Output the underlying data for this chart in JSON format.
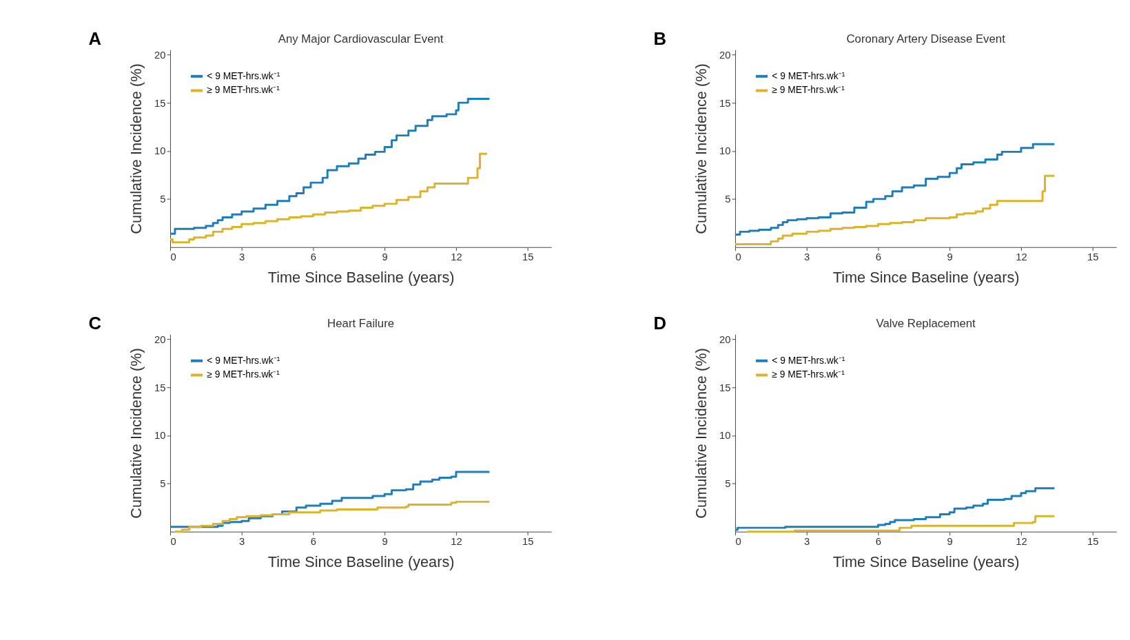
{
  "chart_data": [
    {
      "type": "step",
      "title": "Any Major Cardiovascular Event",
      "annotations": [
        "A"
      ],
      "xlabel": "Time Since Baseline (years)",
      "ylabel": "Cumulative Incidence (%)",
      "xlim": [
        0,
        16
      ],
      "ylim": [
        0,
        20.5
      ],
      "xticks": [
        0,
        3,
        6,
        9,
        12,
        15
      ],
      "yticks": [
        5,
        10,
        15,
        20
      ],
      "grid": false,
      "legend": "top left",
      "line_style": "solid",
      "series": [
        {
          "name": "< 9 MET-hrs.wk⁻¹",
          "color": "#1f7db8",
          "x": [
            0,
            0.2,
            0.8,
            1.0,
            1.5,
            1.8,
            2.0,
            2.2,
            2.6,
            3.0,
            3.5,
            4.0,
            4.5,
            5.0,
            5.3,
            5.6,
            5.9,
            6.4,
            6.6,
            7.0,
            7.5,
            7.9,
            8.2,
            8.6,
            9.0,
            9.3,
            9.5,
            10.0,
            10.3,
            10.8,
            11.0,
            11.6,
            12.0,
            12.1,
            12.5,
            13.4
          ],
          "values": [
            1.4,
            1.9,
            1.9,
            2.0,
            2.2,
            2.5,
            2.8,
            3.1,
            3.4,
            3.7,
            4.0,
            4.4,
            4.8,
            5.3,
            5.6,
            6.2,
            6.7,
            7.2,
            8.0,
            8.4,
            8.7,
            9.2,
            9.6,
            9.9,
            10.4,
            11.1,
            11.6,
            12.1,
            12.6,
            13.2,
            13.6,
            13.8,
            14.2,
            15.0,
            15.4,
            15.4
          ]
        },
        {
          "name": "≥ 9 MET-hrs.wk⁻¹",
          "color": "#dbb42c",
          "x": [
            0,
            0.1,
            0.6,
            0.8,
            1.0,
            1.5,
            1.8,
            2.2,
            2.6,
            3.0,
            3.5,
            4.0,
            4.5,
            5.0,
            5.5,
            6.0,
            6.5,
            7.0,
            7.5,
            8.0,
            8.5,
            9.0,
            9.5,
            10.0,
            10.5,
            10.8,
            11.1,
            12.0,
            12.5,
            12.9,
            13.0,
            13.3
          ],
          "values": [
            0.8,
            0.5,
            0.5,
            0.8,
            1.0,
            1.2,
            1.6,
            1.9,
            2.1,
            2.4,
            2.5,
            2.7,
            2.9,
            3.1,
            3.2,
            3.4,
            3.6,
            3.7,
            3.8,
            4.1,
            4.3,
            4.5,
            4.9,
            5.2,
            5.8,
            6.2,
            6.6,
            6.6,
            7.2,
            8.2,
            9.7,
            9.7
          ]
        }
      ]
    },
    {
      "type": "step",
      "title": "Coronary Artery Disease Event",
      "annotations": [
        "B"
      ],
      "xlabel": "Time Since Baseline (years)",
      "ylabel": "Cumulative Incidence (%)",
      "xlim": [
        0,
        16
      ],
      "ylim": [
        0,
        20.5
      ],
      "xticks": [
        0,
        3,
        6,
        9,
        12,
        15
      ],
      "yticks": [
        5,
        10,
        15,
        20
      ],
      "grid": false,
      "legend": "top left",
      "line_style": "solid",
      "series": [
        {
          "name": "< 9 MET-hrs.wk⁻¹",
          "color": "#1f7db8",
          "x": [
            0,
            0.2,
            0.6,
            1.0,
            1.5,
            1.8,
            2.0,
            2.2,
            2.6,
            3.0,
            3.5,
            4.0,
            4.5,
            5.0,
            5.5,
            5.8,
            6.3,
            6.6,
            7.0,
            7.5,
            8.0,
            8.5,
            9.0,
            9.3,
            9.5,
            10.0,
            10.5,
            11.0,
            11.2,
            11.9,
            12.0,
            12.5,
            13.4
          ],
          "values": [
            1.3,
            1.6,
            1.7,
            1.8,
            2.0,
            2.3,
            2.6,
            2.8,
            2.9,
            3.0,
            3.1,
            3.5,
            3.6,
            4.1,
            4.7,
            5.0,
            5.3,
            5.8,
            6.2,
            6.4,
            7.1,
            7.3,
            7.7,
            8.2,
            8.6,
            8.8,
            9.1,
            9.6,
            9.9,
            9.9,
            10.3,
            10.7,
            10.7
          ]
        },
        {
          "name": "≥ 9 MET-hrs.wk⁻¹",
          "color": "#dbb42c",
          "x": [
            0,
            1.3,
            1.5,
            1.8,
            2.0,
            2.4,
            3.0,
            3.5,
            4.0,
            4.5,
            5.0,
            5.5,
            6.0,
            6.5,
            7.0,
            7.5,
            8.0,
            8.5,
            9.0,
            9.3,
            9.6,
            10.1,
            10.4,
            10.7,
            11.0,
            12.8,
            12.9,
            13.0,
            13.4
          ],
          "values": [
            0.3,
            0.3,
            0.6,
            0.9,
            1.2,
            1.4,
            1.6,
            1.7,
            1.9,
            2.0,
            2.1,
            2.2,
            2.4,
            2.5,
            2.6,
            2.8,
            3.0,
            3.0,
            3.1,
            3.4,
            3.5,
            3.7,
            4.0,
            4.4,
            4.8,
            4.8,
            5.8,
            7.4,
            7.4
          ]
        }
      ]
    },
    {
      "type": "step",
      "title": "Heart Failure",
      "annotations": [
        "C"
      ],
      "xlabel": "Time Since Baseline (years)",
      "ylabel": "Cumulative Incidence (%)",
      "xlim": [
        0,
        16
      ],
      "ylim": [
        0,
        20.5
      ],
      "xticks": [
        0,
        3,
        6,
        9,
        12,
        15
      ],
      "yticks": [
        5,
        10,
        15,
        20
      ],
      "grid": false,
      "legend": "top left",
      "line_style": "solid",
      "series": [
        {
          "name": "< 9 MET-hrs.wk⁻¹",
          "color": "#1f7db8",
          "x": [
            0,
            1.2,
            2.0,
            2.2,
            2.5,
            3.0,
            3.3,
            3.8,
            4.3,
            4.7,
            5.3,
            5.7,
            6.3,
            6.8,
            7.2,
            8.3,
            8.5,
            9.0,
            9.3,
            9.9,
            10.2,
            10.5,
            11.0,
            11.3,
            11.8,
            12.0,
            13.4
          ],
          "values": [
            0.5,
            0.5,
            0.6,
            0.9,
            1.0,
            1.1,
            1.4,
            1.6,
            1.8,
            2.1,
            2.5,
            2.7,
            2.9,
            3.2,
            3.5,
            3.5,
            3.7,
            3.9,
            4.3,
            4.4,
            4.9,
            5.2,
            5.4,
            5.6,
            5.7,
            6.2,
            6.2
          ]
        },
        {
          "name": "≥ 9 MET-hrs.wk⁻¹",
          "color": "#dbb42c",
          "x": [
            0.2,
            0.5,
            0.8,
            1.3,
            1.8,
            2.2,
            2.5,
            2.8,
            3.2,
            3.8,
            4.3,
            5.0,
            6.3,
            7.0,
            8.5,
            8.7,
            9.9,
            10.0,
            11.8,
            12.0,
            13.4
          ],
          "values": [
            0.0,
            0.2,
            0.5,
            0.6,
            0.8,
            1.1,
            1.3,
            1.5,
            1.6,
            1.7,
            1.8,
            2.0,
            2.2,
            2.3,
            2.3,
            2.5,
            2.6,
            2.8,
            3.0,
            3.1,
            3.1
          ]
        }
      ]
    },
    {
      "type": "step",
      "title": "Valve Replacement",
      "annotations": [
        "D"
      ],
      "xlabel": "Time Since Baseline (years)",
      "ylabel": "Cumulative Incidence (%)",
      "xlim": [
        0,
        16
      ],
      "ylim": [
        0,
        20.5
      ],
      "xticks": [
        0,
        3,
        6,
        9,
        12,
        15
      ],
      "yticks": [
        5,
        10,
        15,
        20
      ],
      "grid": false,
      "legend": "top left",
      "line_style": "solid",
      "series": [
        {
          "name": "< 9 MET-hrs.wk⁻¹",
          "color": "#1f7db8",
          "x": [
            0,
            0.1,
            2.0,
            2.1,
            5.8,
            6.0,
            6.3,
            6.5,
            6.7,
            7.5,
            8.0,
            8.6,
            9.0,
            9.2,
            9.7,
            10.0,
            10.4,
            10.6,
            11.3,
            11.6,
            12.0,
            12.2,
            12.6,
            13.4
          ],
          "values": [
            0.2,
            0.4,
            0.4,
            0.5,
            0.5,
            0.7,
            0.8,
            1.0,
            1.2,
            1.3,
            1.5,
            1.8,
            2.0,
            2.4,
            2.5,
            2.7,
            2.9,
            3.3,
            3.4,
            3.7,
            4.0,
            4.2,
            4.5,
            4.5
          ]
        },
        {
          "name": "≥ 9 MET-hrs.wk⁻¹",
          "color": "#dbb42c",
          "x": [
            0.5,
            2.4,
            2.5,
            6.7,
            6.9,
            7.4,
            11.6,
            11.7,
            12.5,
            12.6,
            13.4
          ],
          "values": [
            0.0,
            0.0,
            0.1,
            0.1,
            0.4,
            0.6,
            0.6,
            0.9,
            1.0,
            1.6,
            1.6
          ]
        }
      ]
    }
  ]
}
